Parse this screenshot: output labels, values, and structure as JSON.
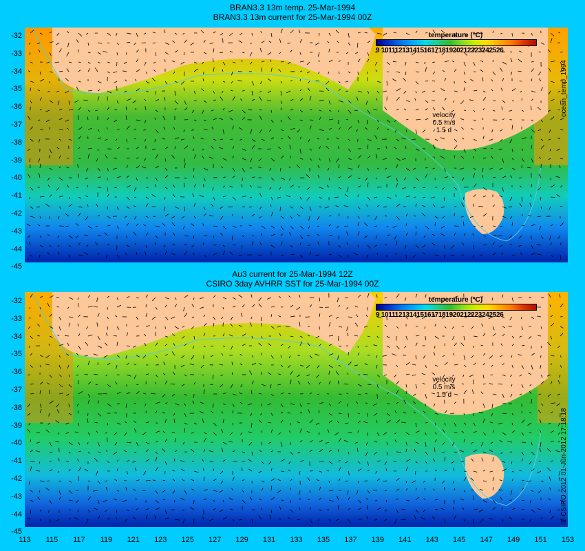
{
  "top_panel": {
    "title_line1": "BRAN3.3 13m temp. 25-Mar-1994",
    "title_line2": "BRAN3.3 13m current for 25-Mar-1994 00Z",
    "side_label": "ocean_temp_1994",
    "legend_title": "temperature (°C)",
    "legend_ticks": "9 1011121314151617181920212223242526",
    "velocity_label": "velocity",
    "velocity_value": "0.5 m/s",
    "velocity_scale": "1.5 d"
  },
  "bottom_panel": {
    "title_line1": "Au3 current for 25-Mar-1994 12Z",
    "title_line2": "CSIRO 3day AVHRR SST for 25-Mar-1994 00Z",
    "side_label": "© CSIRO 2012  01-Jun-2012 17:18:18",
    "legend_title": "temperature (°C)",
    "legend_ticks": "9 1011121314151617181920212223242526",
    "velocity_label": "velocity",
    "velocity_value": "0.5 m/s",
    "velocity_scale": "1.5 d"
  },
  "y_axis_labels": [
    "-32",
    "-33",
    "-34",
    "-35",
    "-36",
    "-37",
    "-38",
    "-39",
    "-40",
    "-41",
    "-42",
    "-43",
    "-44",
    "-45"
  ],
  "x_axis_labels": [
    "113",
    "115",
    "117",
    "119",
    "121",
    "123",
    "125",
    "127",
    "129",
    "131",
    "133",
    "135",
    "137",
    "139",
    "141",
    "143",
    "145",
    "147",
    "149",
    "151",
    "153"
  ],
  "colors": {
    "background": "#00ccff",
    "land": "#fcc89a",
    "cold": "#00008b",
    "warm": "#ff7700"
  }
}
